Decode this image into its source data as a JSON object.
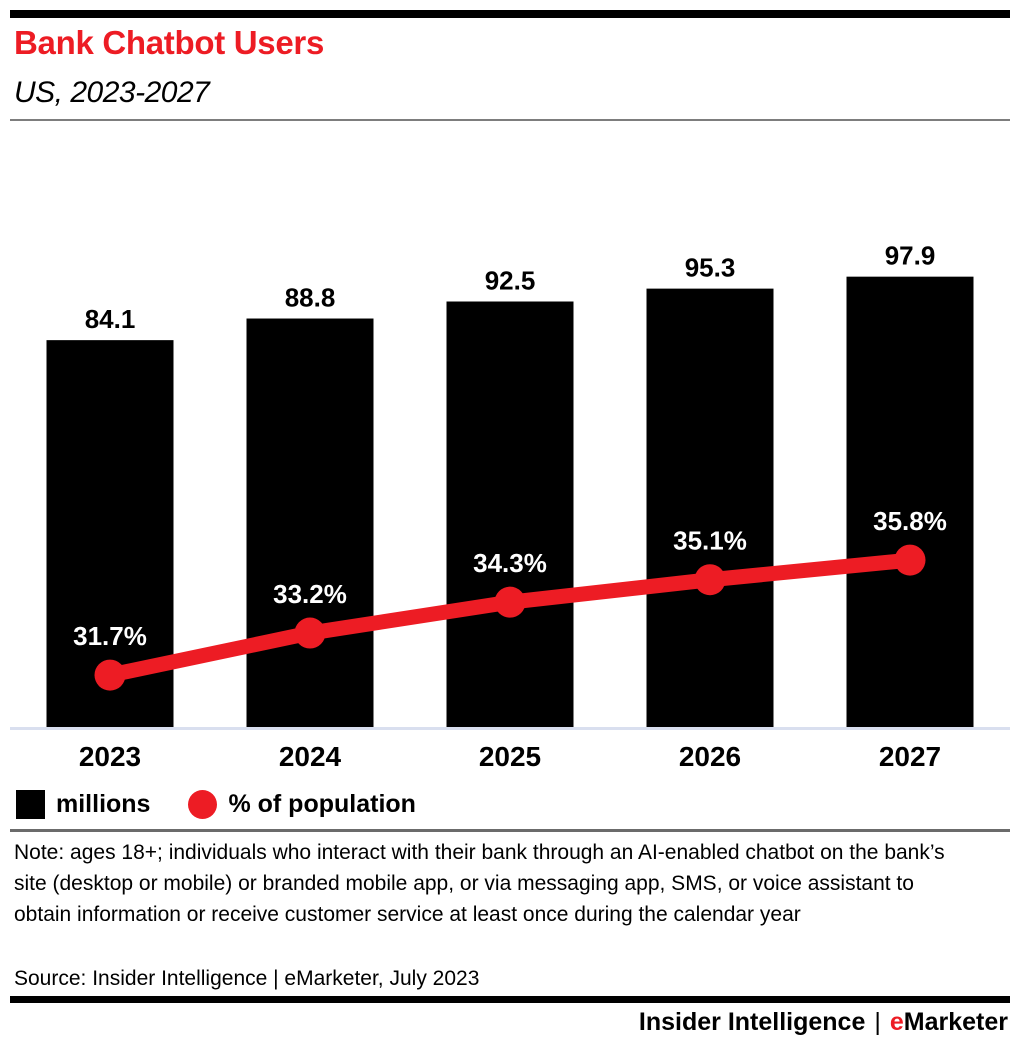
{
  "header": {
    "title": "Bank Chatbot Users",
    "subtitle": "US, 2023-2027"
  },
  "chart_data": {
    "type": "combo-bar-line",
    "categories": [
      "2023",
      "2024",
      "2025",
      "2026",
      "2027"
    ],
    "series": [
      {
        "name": "millions",
        "type": "bar",
        "color": "#000000",
        "values": [
          84.1,
          88.8,
          92.5,
          95.3,
          97.9
        ],
        "labels": [
          "84.1",
          "88.8",
          "92.5",
          "95.3",
          "97.9"
        ]
      },
      {
        "name": "% of population",
        "type": "line",
        "color": "#ed1c24",
        "values": [
          31.7,
          33.2,
          34.3,
          35.1,
          35.8
        ],
        "labels": [
          "31.7%",
          "33.2%",
          "34.3%",
          "35.1%",
          "35.8%"
        ]
      }
    ],
    "title": "Bank Chatbot Users",
    "subtitle": "US, 2023-2027",
    "xlabel": "",
    "ylabel": "",
    "bar_axis_range": [
      0,
      130
    ],
    "line_axis_range": [
      29.85,
      43
    ],
    "layout": {
      "gridlines": false,
      "y_axis_visible": false,
      "value_labels": "direct",
      "bar_label_color": "#000000",
      "line_label_color": "#ffffff",
      "legend_position": "below-chart-left"
    }
  },
  "legend": {
    "items": [
      {
        "label": "millions",
        "swatch": "black-square"
      },
      {
        "label": "% of population",
        "swatch": "red-circle"
      }
    ]
  },
  "note": "Note: ages 18+; individuals who interact with their bank through an AI-enabled chatbot on the bank’s site (desktop or mobile) or branded mobile app, or via messaging app, SMS, or voice assistant to obtain information or receive customer service at least once during the calendar year",
  "source": "Source: Insider Intelligence | eMarketer, July 2023",
  "footer": {
    "brand_left": "Insider Intelligence",
    "separator": "|",
    "emarketer_e": "e",
    "emarketer_rest": "Marketer"
  },
  "colors": {
    "accent_red": "#ed1c24",
    "bar_black": "#000000",
    "axis_line": "#d9dfef",
    "divider_header": "#7d7d7d",
    "divider_legend": "#6b6b6b",
    "line_value_text": "#ffffff"
  }
}
